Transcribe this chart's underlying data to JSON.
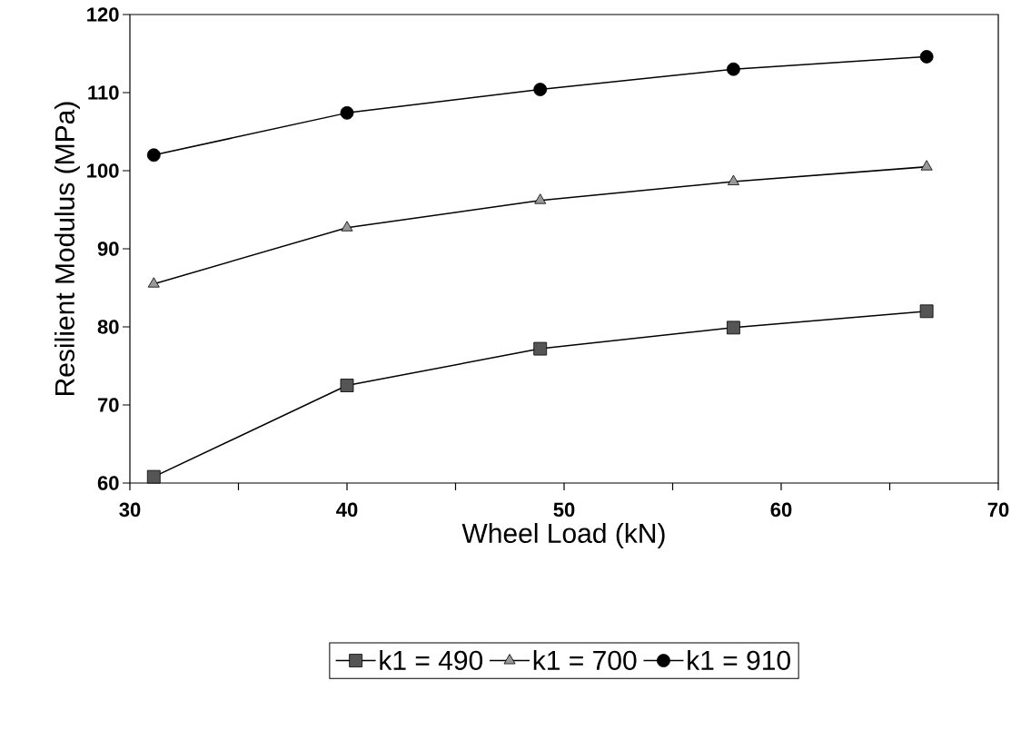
{
  "chart_data": {
    "type": "line",
    "xlabel": "Wheel Load (kN)",
    "ylabel": "Resilient Modulus (MPa)",
    "x": [
      31.1,
      40,
      48.9,
      57.8,
      66.7
    ],
    "series": [
      {
        "name": "k1 = 490",
        "color": "#555555",
        "marker": "square",
        "values": [
          60.8,
          72.5,
          77.2,
          79.9,
          82.0
        ]
      },
      {
        "name": "k1 = 700",
        "color": "#999999",
        "marker": "triangle",
        "values": [
          85.5,
          92.7,
          96.2,
          98.6,
          100.5
        ]
      },
      {
        "name": "k1 = 910",
        "color": "#000000",
        "marker": "circle",
        "values": [
          102.0,
          107.4,
          110.4,
          113.0,
          114.6
        ]
      }
    ],
    "xlim": [
      30,
      70
    ],
    "ylim": [
      60,
      120
    ],
    "xticks": [
      30,
      {
        "value": 35,
        "label": null
      },
      40,
      {
        "value": 45,
        "label": null
      },
      50,
      {
        "value": 55,
        "label": null
      },
      60,
      {
        "value": 65,
        "label": null
      },
      70
    ],
    "yticks": [
      60,
      70,
      80,
      90,
      100,
      110,
      120
    ],
    "grid": false,
    "legend": "bottom",
    "line_style": "solid"
  }
}
